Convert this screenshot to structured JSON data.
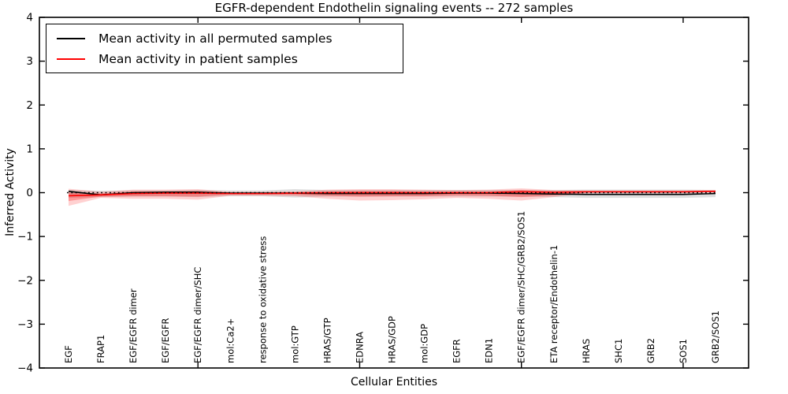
{
  "figure": {
    "title": "EGFR-dependent Endothelin signaling events -- 272 samples"
  },
  "chart_data": {
    "type": "line",
    "title": "EGFR-dependent Endothelin signaling events -- 272 samples",
    "xlabel": "Cellular Entities",
    "ylabel": "Inferred Activity",
    "ylim": [
      -4,
      4
    ],
    "ytick_values": [
      -4,
      -3,
      -2,
      -1,
      0,
      1,
      2,
      3,
      4
    ],
    "xtick_indices": [
      4,
      9,
      14,
      19
    ],
    "grid": false,
    "legend_position": "upper left",
    "colors": {
      "permuted_line": "#000000",
      "patient_line": "#ff0000",
      "frame": "#000000"
    },
    "categories": [
      "EGF",
      "FRAP1",
      "EGF/EGFR dimer",
      "EGF/EGFR",
      "EGF/EGFR dimer/SHC",
      "mol:Ca2+",
      "response to oxidative stress",
      "mol:GTP",
      "HRAS/GTP",
      "EDNRA",
      "HRAS/GDP",
      "mol:GDP",
      "EGFR",
      "EDN1",
      "EGF/EGFR dimer/SHC/GRB2/SOS1",
      "ETA receptor/Endothelin-1",
      "HRAS",
      "SHC1",
      "GRB2",
      "SOS1",
      "GRB2/SOS1"
    ],
    "series": [
      {
        "name": "Mean activity in all permuted samples",
        "color": "#000000",
        "style": "solid",
        "values": [
          0.03,
          -0.05,
          0.0,
          0.01,
          0.01,
          -0.01,
          -0.01,
          -0.01,
          -0.02,
          -0.02,
          -0.02,
          -0.02,
          -0.01,
          -0.01,
          -0.02,
          -0.03,
          -0.04,
          -0.04,
          -0.04,
          -0.04,
          -0.02
        ]
      },
      {
        "name": "Mean activity in patient samples",
        "color": "#ff0000",
        "style": "solid",
        "values": [
          -0.07,
          -0.05,
          -0.02,
          -0.01,
          -0.01,
          -0.02,
          -0.02,
          -0.01,
          0.0,
          0.0,
          0.0,
          0.0,
          0.0,
          0.0,
          0.02,
          0.01,
          0.02,
          0.02,
          0.02,
          0.02,
          0.03
        ]
      }
    ],
    "bands": [
      {
        "name": "permuted-activity-range",
        "color": "#000000",
        "opacity": 0.13,
        "upper": [
          0.06,
          0.04,
          0.05,
          0.05,
          0.06,
          0.05,
          0.05,
          0.08,
          0.06,
          0.06,
          0.06,
          0.06,
          0.06,
          0.06,
          0.06,
          0.06,
          0.07,
          0.07,
          0.07,
          0.07,
          0.06
        ],
        "lower": [
          -0.12,
          -0.1,
          -0.09,
          -0.09,
          -0.1,
          -0.08,
          -0.08,
          -0.11,
          -0.09,
          -0.09,
          -0.09,
          -0.09,
          -0.09,
          -0.09,
          -0.09,
          -0.1,
          -0.12,
          -0.12,
          -0.12,
          -0.12,
          -0.1
        ]
      },
      {
        "name": "patient-activity-range-outer",
        "color": "#ff0000",
        "opacity": 0.18,
        "upper": [
          0.09,
          0.02,
          0.07,
          0.07,
          0.08,
          0.02,
          0.02,
          0.03,
          0.07,
          0.08,
          0.08,
          0.07,
          0.06,
          0.07,
          0.1,
          0.06,
          0.05,
          0.05,
          0.05,
          0.05,
          0.06
        ],
        "lower": [
          -0.3,
          -0.12,
          -0.14,
          -0.14,
          -0.16,
          -0.07,
          -0.07,
          -0.08,
          -0.14,
          -0.18,
          -0.17,
          -0.15,
          -0.12,
          -0.14,
          -0.18,
          -0.1,
          -0.01,
          0.0,
          0.0,
          0.0,
          0.01
        ]
      },
      {
        "name": "patient-activity-range-inner",
        "color": "#ff0000",
        "opacity": 0.28,
        "upper": [
          0.0,
          -0.02,
          0.03,
          0.03,
          0.04,
          0.0,
          0.0,
          0.01,
          0.03,
          0.04,
          0.04,
          0.03,
          0.03,
          0.03,
          0.06,
          0.03,
          0.035,
          0.035,
          0.035,
          0.035,
          0.045
        ],
        "lower": [
          -0.19,
          -0.09,
          -0.08,
          -0.08,
          -0.09,
          -0.04,
          -0.04,
          -0.05,
          -0.07,
          -0.09,
          -0.08,
          -0.08,
          -0.06,
          -0.07,
          -0.1,
          -0.06,
          0.005,
          0.005,
          0.005,
          0.005,
          0.015
        ]
      }
    ],
    "reference_line": {
      "value": 0,
      "color": "#000000",
      "style": "dotted"
    }
  }
}
